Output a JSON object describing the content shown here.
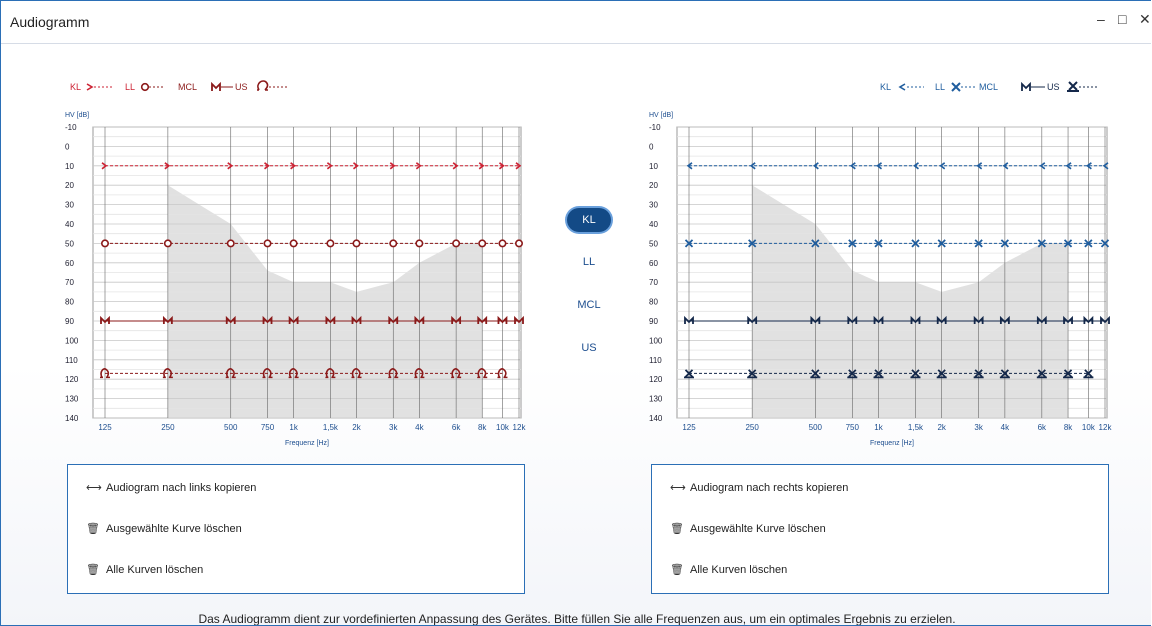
{
  "window": {
    "title": "Audiogramm",
    "controls": {
      "minimize": "–",
      "maximize": "□",
      "close": "✕"
    }
  },
  "left_legend": [
    {
      "label": "KL",
      "symbol": "arrow-right-dashed"
    },
    {
      "label": "LL",
      "symbol": "circle-dashed"
    },
    {
      "label": "MCL",
      "symbol": "m-solid"
    },
    {
      "label": "US",
      "symbol": "omega-dashed"
    }
  ],
  "right_legend": [
    {
      "label": "KL",
      "symbol": "arrow-left-dashed"
    },
    {
      "label": "LL",
      "symbol": "x-dashed"
    },
    {
      "label": "MCL",
      "symbol": "m-solid"
    },
    {
      "label": "US",
      "symbol": "x-omega-dashed"
    }
  ],
  "modes": [
    {
      "label": "KL",
      "active": true
    },
    {
      "label": "LL",
      "active": false
    },
    {
      "label": "MCL",
      "active": false
    },
    {
      "label": "US",
      "active": false
    }
  ],
  "colors": {
    "left": "#cc2233",
    "left_dark": "#8b1a1a",
    "right": "#1f5d9e",
    "right_dark": "#14284a",
    "accent": "#134a86"
  },
  "chart_data": [
    {
      "type": "line",
      "side": "left",
      "ylabel": "HV [dB]",
      "xlabel": "Frequenz [Hz]",
      "y_ticks": [
        -10,
        0,
        10,
        20,
        30,
        40,
        50,
        60,
        70,
        80,
        90,
        100,
        110,
        120,
        130,
        140
      ],
      "ylim": [
        -10,
        140
      ],
      "x_tick_labels": [
        "125",
        "250",
        "500",
        "750",
        "1k",
        "1,5k",
        "2k",
        "3k",
        "4k",
        "6k",
        "8k",
        "10k",
        "12k"
      ],
      "x_hz": [
        125,
        250,
        500,
        750,
        1000,
        1500,
        2000,
        3000,
        4000,
        6000,
        8000,
        10000,
        12000
      ],
      "speech_banana": {
        "x_hz": [
          250,
          500,
          750,
          1000,
          1500,
          2000,
          3000,
          4000,
          6000,
          8000
        ],
        "top_db": [
          20,
          40,
          64,
          70,
          70,
          75,
          70,
          60,
          50,
          50
        ]
      },
      "series": [
        {
          "name": "KL",
          "values": [
            10,
            10,
            10,
            10,
            10,
            10,
            10,
            10,
            10,
            10,
            10,
            10,
            10
          ]
        },
        {
          "name": "LL",
          "values": [
            50,
            50,
            50,
            50,
            50,
            50,
            50,
            50,
            50,
            50,
            50,
            50,
            50
          ]
        },
        {
          "name": "MCL",
          "values": [
            90,
            90,
            90,
            90,
            90,
            90,
            90,
            90,
            90,
            90,
            90,
            90,
            90
          ]
        },
        {
          "name": "US",
          "values": [
            117,
            117,
            117,
            117,
            117,
            117,
            117,
            117,
            117,
            117,
            117,
            117,
            null
          ]
        }
      ]
    },
    {
      "type": "line",
      "side": "right",
      "ylabel": "HV [dB]",
      "xlabel": "Frequenz [Hz]",
      "y_ticks": [
        -10,
        0,
        10,
        20,
        30,
        40,
        50,
        60,
        70,
        80,
        90,
        100,
        110,
        120,
        130,
        140
      ],
      "ylim": [
        -10,
        140
      ],
      "x_tick_labels": [
        "125",
        "250",
        "500",
        "750",
        "1k",
        "1,5k",
        "2k",
        "3k",
        "4k",
        "6k",
        "8k",
        "10k",
        "12k"
      ],
      "x_hz": [
        125,
        250,
        500,
        750,
        1000,
        1500,
        2000,
        3000,
        4000,
        6000,
        8000,
        10000,
        12000
      ],
      "speech_banana": {
        "x_hz": [
          250,
          500,
          750,
          1000,
          1500,
          2000,
          3000,
          4000,
          6000,
          8000
        ],
        "top_db": [
          20,
          40,
          64,
          70,
          70,
          75,
          70,
          60,
          50,
          50
        ]
      },
      "series": [
        {
          "name": "KL",
          "values": [
            10,
            10,
            10,
            10,
            10,
            10,
            10,
            10,
            10,
            10,
            10,
            10,
            10
          ]
        },
        {
          "name": "LL",
          "values": [
            50,
            50,
            50,
            50,
            50,
            50,
            50,
            50,
            50,
            50,
            50,
            50,
            50
          ]
        },
        {
          "name": "MCL",
          "values": [
            90,
            90,
            90,
            90,
            90,
            90,
            90,
            90,
            90,
            90,
            90,
            90,
            90
          ]
        },
        {
          "name": "US",
          "values": [
            117,
            117,
            117,
            117,
            117,
            117,
            117,
            117,
            117,
            117,
            117,
            117,
            null
          ]
        }
      ]
    }
  ],
  "left_panel": {
    "copy": "Audiogram nach links kopieren",
    "delete_selected": "Ausgewählte Kurve löschen",
    "delete_all": "Alle Kurven löschen"
  },
  "right_panel": {
    "copy": "Audiogram nach rechts kopieren",
    "delete_selected": "Ausgewählte Kurve löschen",
    "delete_all": "Alle Kurven löschen"
  },
  "footer": "Das Audiogramm dient zur vordefinierten Anpassung des Gerätes. Bitte füllen Sie alle Frequenzen aus, um ein optimales Ergebnis zu erzielen."
}
